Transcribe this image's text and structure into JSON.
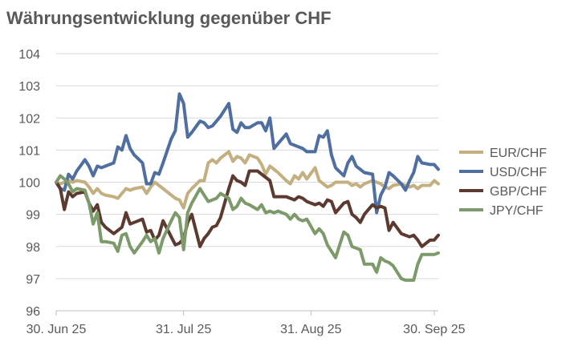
{
  "chart_data": {
    "type": "line",
    "title": "Währungsentwicklung gegenüber CHF",
    "xlabel": "",
    "ylabel": "",
    "ylim": [
      96,
      104
    ],
    "yticks": [
      96,
      97,
      98,
      99,
      100,
      101,
      102,
      103,
      104
    ],
    "grid": true,
    "legend_position": "right",
    "x_ticks": [
      {
        "day": 0,
        "label": "30. Jun 25"
      },
      {
        "day": 31,
        "label": "31. Jul 25"
      },
      {
        "day": 62,
        "label": "31. Aug 25"
      },
      {
        "day": 92,
        "label": "30. Sep 25"
      }
    ],
    "series": [
      {
        "name": "EUR/CHF",
        "color": "#C4AF80",
        "days": [
          0,
          1,
          2,
          3,
          4,
          5,
          7,
          8,
          9,
          10,
          11,
          12,
          14,
          15,
          16,
          17,
          18,
          19,
          21,
          22,
          23,
          24,
          25,
          26,
          28,
          29,
          30,
          31,
          32,
          33,
          35,
          36,
          37,
          38,
          39,
          40,
          42,
          43,
          44,
          45,
          46,
          47,
          49,
          50,
          51,
          52,
          53,
          54,
          56,
          57,
          58,
          59,
          60,
          61,
          63,
          64,
          65,
          66,
          67,
          68,
          70,
          71,
          72,
          73,
          74,
          75,
          77,
          78,
          79,
          80,
          81,
          82,
          84,
          85,
          86,
          87,
          88,
          89,
          91,
          92,
          93
        ],
        "values": [
          100.0,
          99.95,
          100.0,
          100.05,
          100.0,
          100.05,
          100.0,
          99.85,
          99.65,
          99.8,
          99.65,
          99.6,
          99.55,
          99.5,
          99.65,
          99.8,
          99.75,
          99.8,
          99.85,
          99.65,
          99.85,
          100.0,
          99.9,
          99.8,
          99.6,
          99.5,
          99.45,
          99.2,
          99.65,
          99.8,
          100.05,
          100.05,
          100.6,
          100.7,
          100.6,
          100.75,
          100.95,
          100.65,
          100.8,
          100.75,
          100.6,
          100.85,
          100.75,
          100.55,
          100.25,
          100.5,
          100.4,
          100.3,
          100.05,
          99.95,
          100.2,
          100.1,
          100.3,
          100.1,
          100.45,
          100.05,
          99.95,
          99.85,
          99.9,
          100.0,
          100.0,
          100.0,
          99.9,
          99.95,
          99.85,
          99.95,
          100.05,
          100.0,
          99.95,
          99.85,
          99.8,
          99.9,
          99.95,
          99.9,
          99.85,
          99.9,
          99.8,
          99.9,
          99.9,
          100.05,
          99.95
        ]
      },
      {
        "name": "USD/CHF",
        "color": "#4F6FA1",
        "days": [
          0,
          1,
          2,
          3,
          4,
          5,
          7,
          8,
          9,
          10,
          11,
          12,
          14,
          15,
          16,
          17,
          18,
          19,
          21,
          22,
          23,
          24,
          25,
          26,
          28,
          29,
          30,
          31,
          32,
          33,
          35,
          36,
          37,
          38,
          39,
          40,
          42,
          43,
          44,
          45,
          46,
          47,
          49,
          50,
          51,
          52,
          53,
          54,
          56,
          57,
          58,
          59,
          60,
          61,
          63,
          64,
          65,
          66,
          67,
          68,
          70,
          71,
          72,
          73,
          74,
          75,
          77,
          78,
          79,
          80,
          81,
          82,
          84,
          85,
          86,
          87,
          88,
          89,
          91,
          92,
          93
        ],
        "values": [
          100.0,
          99.8,
          99.75,
          100.25,
          100.1,
          100.35,
          100.7,
          100.5,
          100.2,
          100.5,
          100.45,
          100.5,
          100.6,
          101.1,
          101.0,
          101.45,
          101.05,
          100.85,
          100.6,
          99.95,
          99.95,
          100.3,
          100.25,
          100.6,
          101.35,
          101.6,
          102.75,
          102.45,
          101.4,
          101.55,
          101.9,
          101.85,
          101.7,
          101.75,
          101.9,
          102.05,
          102.45,
          101.65,
          101.55,
          101.85,
          101.7,
          101.7,
          101.85,
          101.85,
          101.6,
          102.0,
          101.05,
          101.2,
          101.5,
          101.2,
          101.15,
          101.1,
          101.05,
          100.95,
          100.95,
          101.45,
          101.4,
          101.6,
          100.85,
          100.45,
          100.2,
          100.6,
          100.8,
          100.5,
          100.4,
          100.3,
          100.25,
          99.05,
          99.6,
          99.85,
          100.3,
          100.2,
          99.95,
          99.75,
          100.05,
          100.3,
          100.8,
          100.6,
          100.55,
          100.55,
          100.4
        ]
      },
      {
        "name": "GBP/CHF",
        "color": "#5C3A30",
        "days": [
          0,
          1,
          2,
          3,
          4,
          5,
          7,
          8,
          9,
          10,
          11,
          12,
          14,
          15,
          16,
          17,
          18,
          19,
          21,
          22,
          23,
          24,
          25,
          26,
          28,
          29,
          30,
          31,
          32,
          33,
          35,
          36,
          37,
          38,
          39,
          40,
          42,
          43,
          44,
          45,
          46,
          47,
          49,
          50,
          51,
          52,
          53,
          54,
          56,
          57,
          58,
          59,
          60,
          61,
          63,
          64,
          65,
          66,
          67,
          68,
          70,
          71,
          72,
          73,
          74,
          75,
          77,
          78,
          79,
          80,
          81,
          82,
          84,
          85,
          86,
          87,
          88,
          89,
          91,
          92,
          93
        ],
        "values": [
          100.0,
          99.8,
          99.15,
          99.7,
          99.55,
          99.65,
          99.7,
          99.35,
          99.1,
          99.3,
          98.75,
          98.6,
          98.4,
          98.5,
          98.6,
          99.05,
          98.7,
          98.75,
          98.85,
          98.45,
          98.5,
          98.2,
          98.35,
          98.8,
          98.3,
          98.05,
          98.1,
          98.25,
          98.75,
          99.0,
          98.0,
          98.25,
          98.4,
          98.6,
          98.65,
          98.9,
          99.8,
          100.2,
          100.05,
          100.0,
          99.9,
          100.35,
          100.35,
          100.25,
          100.15,
          100.05,
          99.55,
          99.55,
          99.55,
          99.5,
          99.45,
          99.55,
          99.5,
          99.4,
          99.3,
          99.35,
          99.25,
          99.45,
          99.4,
          99.05,
          99.35,
          99.4,
          99.0,
          98.9,
          98.75,
          99.0,
          99.3,
          99.2,
          99.25,
          99.2,
          98.5,
          98.75,
          98.4,
          98.35,
          98.3,
          98.35,
          98.2,
          98.0,
          98.2,
          98.2,
          98.35
        ]
      },
      {
        "name": "JPY/CHF",
        "color": "#7D9A6A",
        "days": [
          0,
          1,
          2,
          3,
          4,
          5,
          7,
          8,
          9,
          10,
          11,
          12,
          14,
          15,
          16,
          17,
          18,
          19,
          21,
          22,
          23,
          24,
          25,
          26,
          28,
          29,
          30,
          31,
          32,
          33,
          35,
          36,
          37,
          38,
          39,
          40,
          42,
          43,
          44,
          45,
          46,
          47,
          49,
          50,
          51,
          52,
          53,
          54,
          56,
          57,
          58,
          59,
          60,
          61,
          63,
          64,
          65,
          66,
          67,
          68,
          70,
          71,
          72,
          73,
          74,
          75,
          77,
          78,
          79,
          80,
          81,
          82,
          84,
          85,
          86,
          87,
          88,
          89,
          91,
          92,
          93
        ],
        "values": [
          100.0,
          100.2,
          100.1,
          99.95,
          99.7,
          99.8,
          99.75,
          99.35,
          98.7,
          99.05,
          98.15,
          98.15,
          98.1,
          97.85,
          98.35,
          98.4,
          98.0,
          97.8,
          98.15,
          98.35,
          98.15,
          98.25,
          97.8,
          98.25,
          98.8,
          99.05,
          98.9,
          97.9,
          99.05,
          99.35,
          99.8,
          99.6,
          99.4,
          99.45,
          99.5,
          99.65,
          99.5,
          99.15,
          99.25,
          99.5,
          99.35,
          99.3,
          99.15,
          99.3,
          99.05,
          99.1,
          99.05,
          99.1,
          99.0,
          98.85,
          99.0,
          98.85,
          98.8,
          98.85,
          98.4,
          98.55,
          98.4,
          98.05,
          97.85,
          97.65,
          98.45,
          98.35,
          98.0,
          97.95,
          97.9,
          97.45,
          97.45,
          97.2,
          97.65,
          97.55,
          97.5,
          97.4,
          97.0,
          96.95,
          96.95,
          96.95,
          97.45,
          97.75,
          97.75,
          97.75,
          97.8
        ]
      }
    ]
  }
}
